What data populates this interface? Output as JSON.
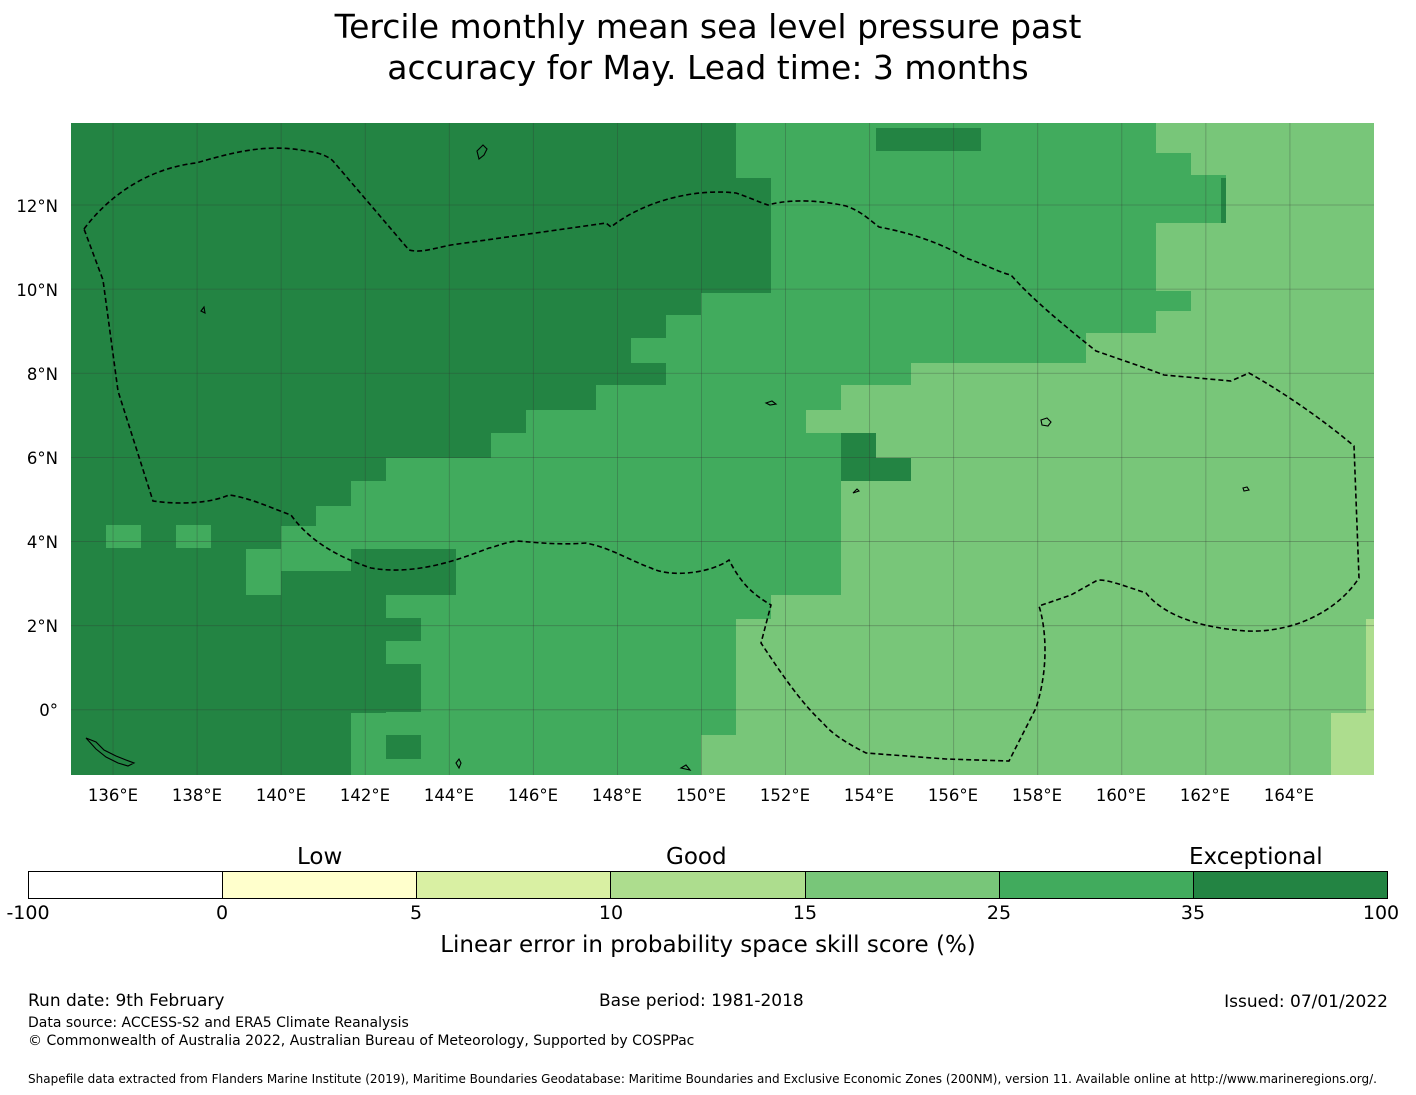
{
  "title": {
    "line1": "Tercile monthly mean sea level pressure past",
    "line2": "accuracy for May. Lead time: 3 months"
  },
  "map": {
    "lon_range": [
      135,
      166
    ],
    "lat_range": [
      -1.55,
      13.95
    ],
    "y_axis_labels": [
      "12°N",
      "10°N",
      "8°N",
      "6°N",
      "4°N",
      "2°N",
      "0°"
    ],
    "x_axis_labels": [
      "136°E",
      "138°E",
      "140°E",
      "142°E",
      "144°E",
      "146°E",
      "148°E",
      "150°E",
      "152°E",
      "154°E",
      "156°E",
      "158°E",
      "160°E",
      "162°E",
      "164°E"
    ],
    "gridline_color": "#333333"
  },
  "colorbar": {
    "category_labels": [
      "Low",
      "Good",
      "Exceptional"
    ],
    "ticks": [
      "-100",
      "0",
      "5",
      "10",
      "15",
      "25",
      "35",
      "100"
    ],
    "colors": [
      "#ffffff",
      "#ffffcc",
      "#d9f0a3",
      "#addd8e",
      "#78c679",
      "#41ab5d",
      "#238443"
    ],
    "title": "Linear error in probability space skill score (%)"
  },
  "footer": {
    "run_date": "Run date: 9th February",
    "base_period": "Base period: 1981-2018",
    "issued": "Issued: 07/01/2022",
    "data_source": "Data source: ACCESS-S2 and ERA5 Climate Reanalysis",
    "copyright": "© Commonwealth of Australia 2022, Australian Bureau of Meteorology, Supported by COSPPac",
    "shapefile": "Shapefile data extracted from Flanders Marine Institute (2019), Maritime Boundaries Geodatabase: Maritime Boundaries and Exclusive Economic Zones (200NM), version 11. Available online at http://www.marineregions.org/."
  }
}
